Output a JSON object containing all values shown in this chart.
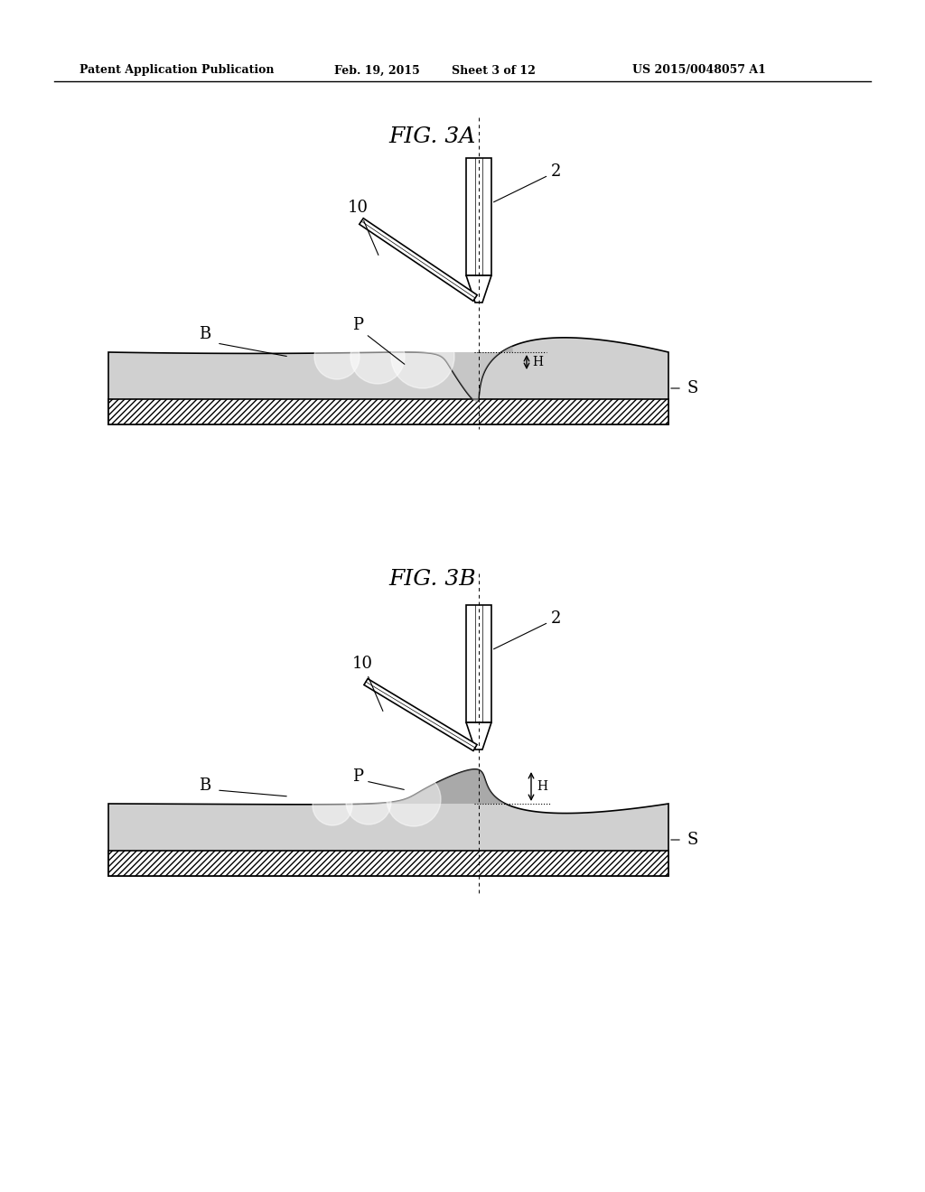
{
  "bg_color": "#ffffff",
  "header_text": "Patent Application Publication",
  "header_date": "Feb. 19, 2015",
  "header_sheet": "Sheet 3 of 12",
  "header_patent": "US 2015/0048057 A1",
  "fig3a_title": "FIG. 3A",
  "fig3b_title": "FIG. 3B",
  "label_2a": "2",
  "label_10a": "10",
  "label_Ba": "B",
  "label_Pa": "P",
  "label_Ha": "H",
  "label_Sa": "S",
  "label_2b": "2",
  "label_10b": "10",
  "label_Bb": "B",
  "label_Pb": "P",
  "label_Hb": "H",
  "label_Sb": "S",
  "line_color": "#000000",
  "hatch_color": "#000000",
  "weld_pool_color_3a": "#c8c8c8",
  "weld_pool_color_3b": "#c8c8c8",
  "plate_light_color": "#d8d8d8",
  "plate_dark_color": "#888888"
}
